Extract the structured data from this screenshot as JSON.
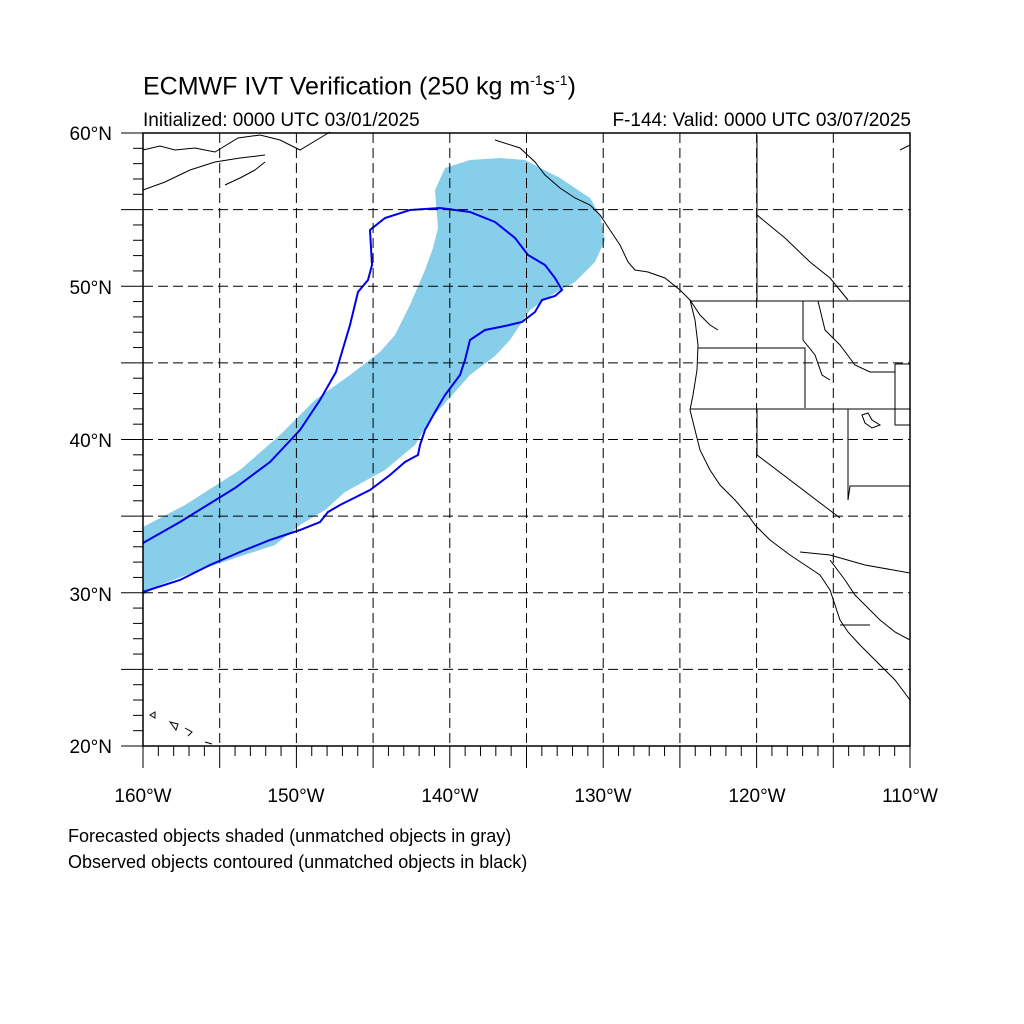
{
  "title": {
    "text": "ECMWF IVT Verification (250 kg m",
    "sup1": "-1",
    "mid": "s",
    "sup2": "-1",
    "end": ")"
  },
  "subtitle_left": "Initialized: 0000 UTC 03/01/2025",
  "subtitle_right": "F-144: Valid: 0000 UTC 03/07/2025",
  "lat_labels": [
    "60°N",
    "50°N",
    "40°N",
    "30°N",
    "20°N"
  ],
  "lon_labels": [
    "160°W",
    "150°W",
    "140°W",
    "130°W",
    "120°W",
    "110°W"
  ],
  "notes": {
    "line1": "Forecasted objects shaded (unmatched objects in gray)",
    "line2": "Observed objects contoured (unmatched objects in black)"
  },
  "colors": {
    "forecast_fill": "#87ceeb",
    "observed_contour": "#0000ee",
    "coastline": "#000000",
    "grid": "#000000"
  }
}
